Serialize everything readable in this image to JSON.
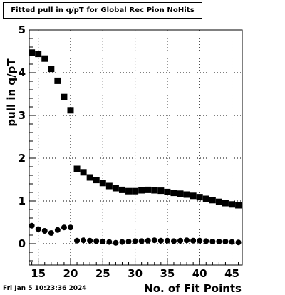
{
  "chart_data": {
    "type": "scatter",
    "title": "Fitted pull in q/pT for Global Rec Pion NoHits",
    "xlabel": "No. of Fit Points",
    "ylabel": "pull in q/pT",
    "xlim": [
      13.6,
      46.6
    ],
    "ylim": [
      -0.5,
      5
    ],
    "xticks": [
      15,
      20,
      25,
      30,
      35,
      40,
      45
    ],
    "yticks": [
      0,
      1,
      2,
      3,
      4,
      5
    ],
    "grid": true,
    "series": [
      {
        "marker": "square",
        "x": [
          14,
          15,
          16,
          17,
          18,
          19,
          20,
          21,
          22,
          23,
          24,
          25,
          26,
          27,
          28,
          29,
          30,
          31,
          32,
          33,
          34,
          35,
          36,
          37,
          38,
          39,
          40,
          41,
          42,
          43,
          44,
          45,
          46
        ],
        "y": [
          4.47,
          4.44,
          4.33,
          4.09,
          3.81,
          3.43,
          3.12,
          1.75,
          1.67,
          1.55,
          1.49,
          1.42,
          1.35,
          1.3,
          1.26,
          1.23,
          1.23,
          1.25,
          1.26,
          1.25,
          1.24,
          1.21,
          1.19,
          1.17,
          1.15,
          1.12,
          1.09,
          1.05,
          1.02,
          0.98,
          0.95,
          0.92,
          0.9
        ]
      },
      {
        "marker": "circle",
        "x": [
          14,
          15,
          16,
          17,
          18,
          19,
          20,
          21,
          22,
          23,
          24,
          25,
          26,
          27,
          28,
          29,
          30,
          31,
          32,
          33,
          34,
          35,
          36,
          37,
          38,
          39,
          40,
          41,
          42,
          43,
          44,
          45,
          46
        ],
        "y": [
          0.42,
          0.34,
          0.3,
          0.25,
          0.32,
          0.38,
          0.38,
          0.07,
          0.08,
          0.07,
          0.06,
          0.05,
          0.04,
          0.02,
          0.04,
          0.05,
          0.06,
          0.06,
          0.07,
          0.08,
          0.07,
          0.07,
          0.06,
          0.07,
          0.08,
          0.07,
          0.07,
          0.06,
          0.05,
          0.05,
          0.05,
          0.04,
          0.03
        ]
      }
    ]
  },
  "footer": {
    "timestamp": "Fri Jan  5 10:23:36 2024"
  }
}
